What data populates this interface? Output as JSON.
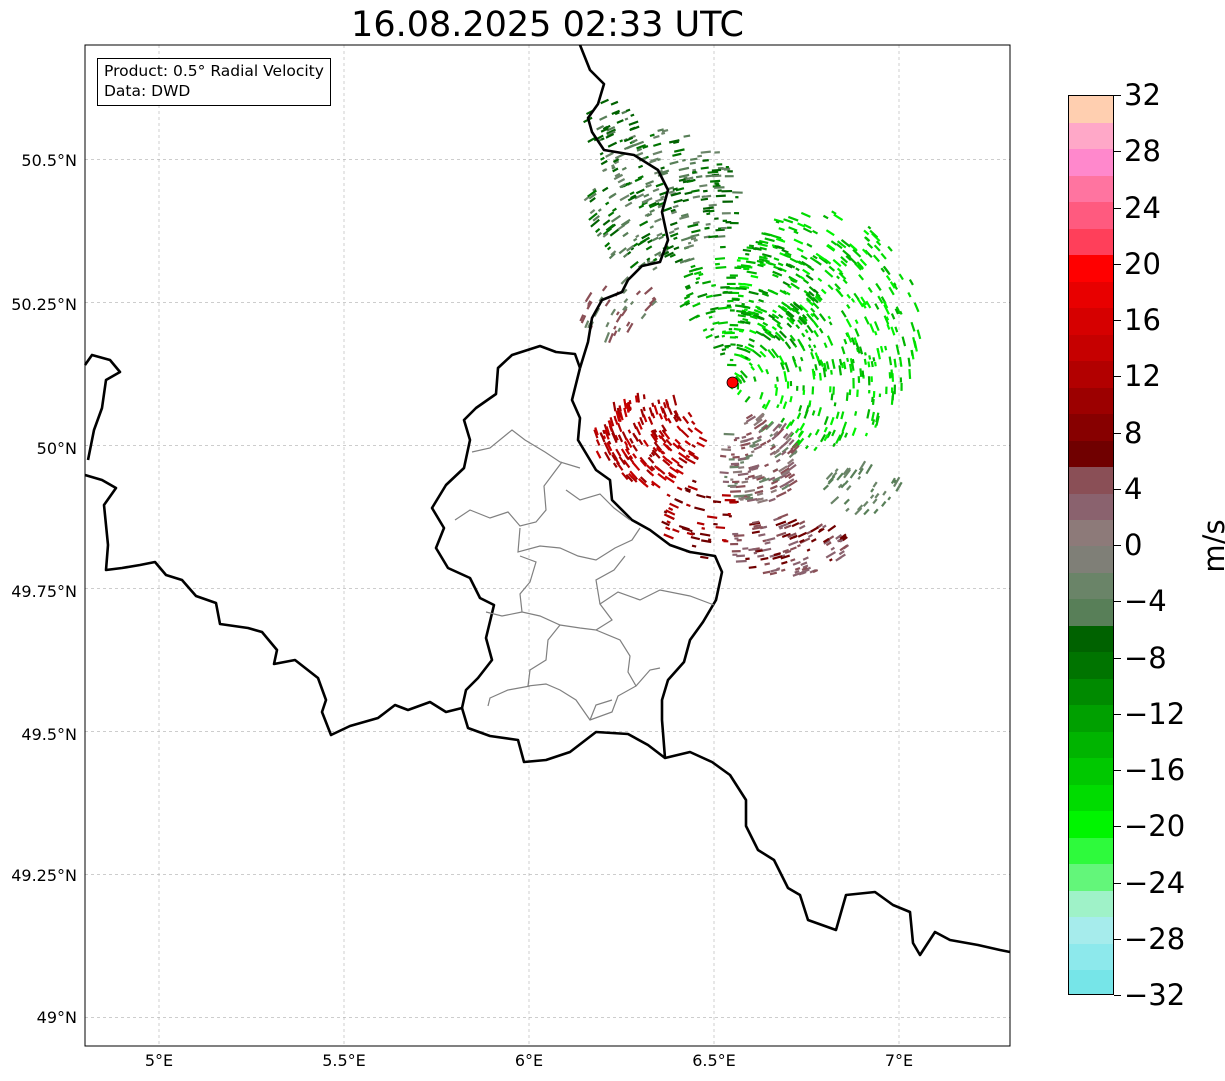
{
  "title": "16.08.2025 02:33 UTC",
  "info": {
    "product": "Product: 0.5° Radial Velocity",
    "source": "Data: DWD"
  },
  "axes": {
    "lat_labels": [
      "50.5°N",
      "50.25°N",
      "50°N",
      "49.75°N",
      "49.5°N",
      "49.25°N",
      "49°N"
    ],
    "lon_labels": [
      "5°E",
      "5.5°E",
      "6°E",
      "6.5°E",
      "7°E"
    ],
    "lat_range": [
      48.95,
      50.7
    ],
    "lon_range": [
      4.8,
      7.3
    ],
    "grid": true
  },
  "radar_site": {
    "lat": 50.11,
    "lon": 6.55,
    "color": "#ff0000"
  },
  "colorbar": {
    "unit": "m/s",
    "range": [
      -32,
      32
    ],
    "tick_labels": [
      "32",
      "28",
      "24",
      "20",
      "16",
      "12",
      "8",
      "4",
      "0",
      "−4",
      "−8",
      "−12",
      "−16",
      "−20",
      "−24",
      "−28",
      "−32"
    ],
    "colors_bottom_to_top": [
      "#76e5e8",
      "#8de9ec",
      "#a6ecec",
      "#9ff2c8",
      "#63f67a",
      "#2efa3c",
      "#00f500",
      "#00dc00",
      "#00c800",
      "#00b400",
      "#00a000",
      "#008a00",
      "#007400",
      "#006200",
      "#587f58",
      "#6a8468",
      "#7f7f77",
      "#8d7a79",
      "#8a626e",
      "#8a4f56",
      "#700000",
      "#870000",
      "#9c0000",
      "#b20000",
      "#c60000",
      "#d60000",
      "#e80000",
      "#ff0000",
      "#ff3f5a",
      "#ff5a7f",
      "#ff74a0",
      "#ff88cc",
      "#ffa8c8",
      "#ffcfb0"
    ]
  }
}
